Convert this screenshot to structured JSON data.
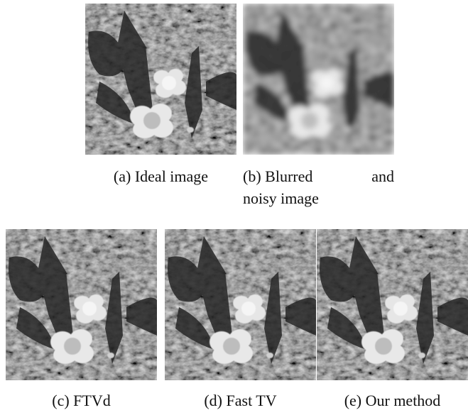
{
  "figure": {
    "subfigures": [
      {
        "caption": "(a) Ideal image"
      },
      {
        "caption_lines": [
          "(b) Blurred",
          "and",
          "noisy image"
        ]
      },
      {
        "caption": "(c) FTVd"
      },
      {
        "caption": "(d) Fast TV"
      },
      {
        "caption": "(e) Our method"
      }
    ]
  }
}
